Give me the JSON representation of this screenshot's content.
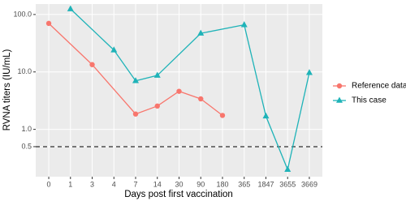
{
  "chart_data": {
    "type": "line",
    "x_label": "Days post first vaccination",
    "y_label": "RVNA titers (IU/mL)",
    "categories": [
      "0",
      "1",
      "3",
      "4",
      "7",
      "14",
      "30",
      "90",
      "180",
      "365",
      "1847",
      "3655",
      "3669"
    ],
    "series": [
      {
        "name": "Reference data",
        "color": "#f8766d",
        "marker": "circle",
        "x": [
          "0",
          "3",
          "7",
          "14",
          "30",
          "90",
          "180"
        ],
        "values": [
          70,
          13.4,
          1.85,
          2.55,
          4.6,
          3.4,
          1.75
        ]
      },
      {
        "name": "This case",
        "color": "#1fb3b8",
        "marker": "triangle",
        "x": [
          "1",
          "4",
          "7",
          "14",
          "90",
          "365",
          "1847",
          "3655",
          "3669"
        ],
        "values": [
          125,
          24,
          7,
          8.7,
          47,
          66,
          1.7,
          0.2,
          9.7
        ]
      }
    ],
    "log_y": true,
    "ylim": [
      0.15,
      152
    ],
    "yticks": [
      {
        "value": 100,
        "label": "100.0"
      },
      {
        "value": 10,
        "label": "10.0"
      },
      {
        "value": 1,
        "label": "1.0"
      },
      {
        "value": 0.5,
        "label": "0.5"
      }
    ],
    "hline": 0.5,
    "grid": true,
    "legend": "right"
  }
}
